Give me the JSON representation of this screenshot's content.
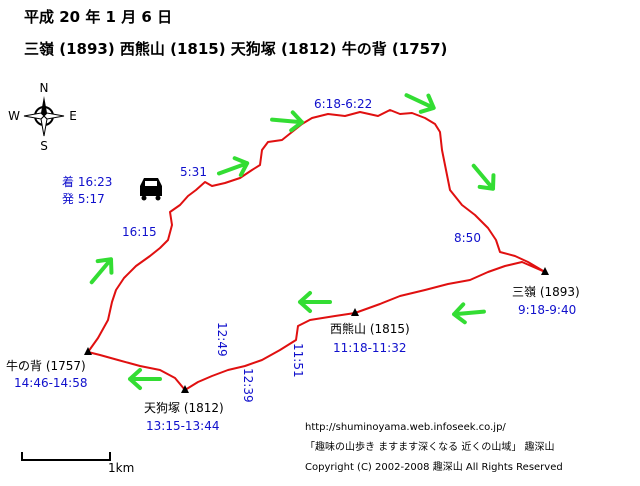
{
  "header": {
    "date": "平成 20 年 1 月 6 日",
    "route": "三嶺 (1893)  西熊山 (1815)  天狗塚 (1812)  牛の背 (1757)"
  },
  "compass": {
    "north": "N",
    "south": "S",
    "east": "E",
    "west": "W"
  },
  "parking": {
    "arrive": "着 16:23",
    "depart": "発 5:17"
  },
  "peaks": [
    {
      "name": "三嶺 (1893)",
      "time": "9:18-9:40"
    },
    {
      "name": "西熊山 (1815)",
      "time": "11:18-11:32"
    },
    {
      "name": "天狗塚 (1812)",
      "time": "13:15-13:44"
    },
    {
      "name": "牛の背 (1757)",
      "time": "14:46-14:58"
    }
  ],
  "times": [
    "16:15",
    "5:31",
    "6:18-6:22",
    "8:50",
    "11:51",
    "12:39",
    "12:49"
  ],
  "scale": "1km",
  "footer": {
    "url": "http://shuminoyama.web.infoseek.co.jp/",
    "tagline": "「趣味の山歩き ますます深くなる  近くの山域」  趣深山",
    "copyright": "Copyright (C) 2002-2008 趣深山 All Rights Reserved"
  }
}
